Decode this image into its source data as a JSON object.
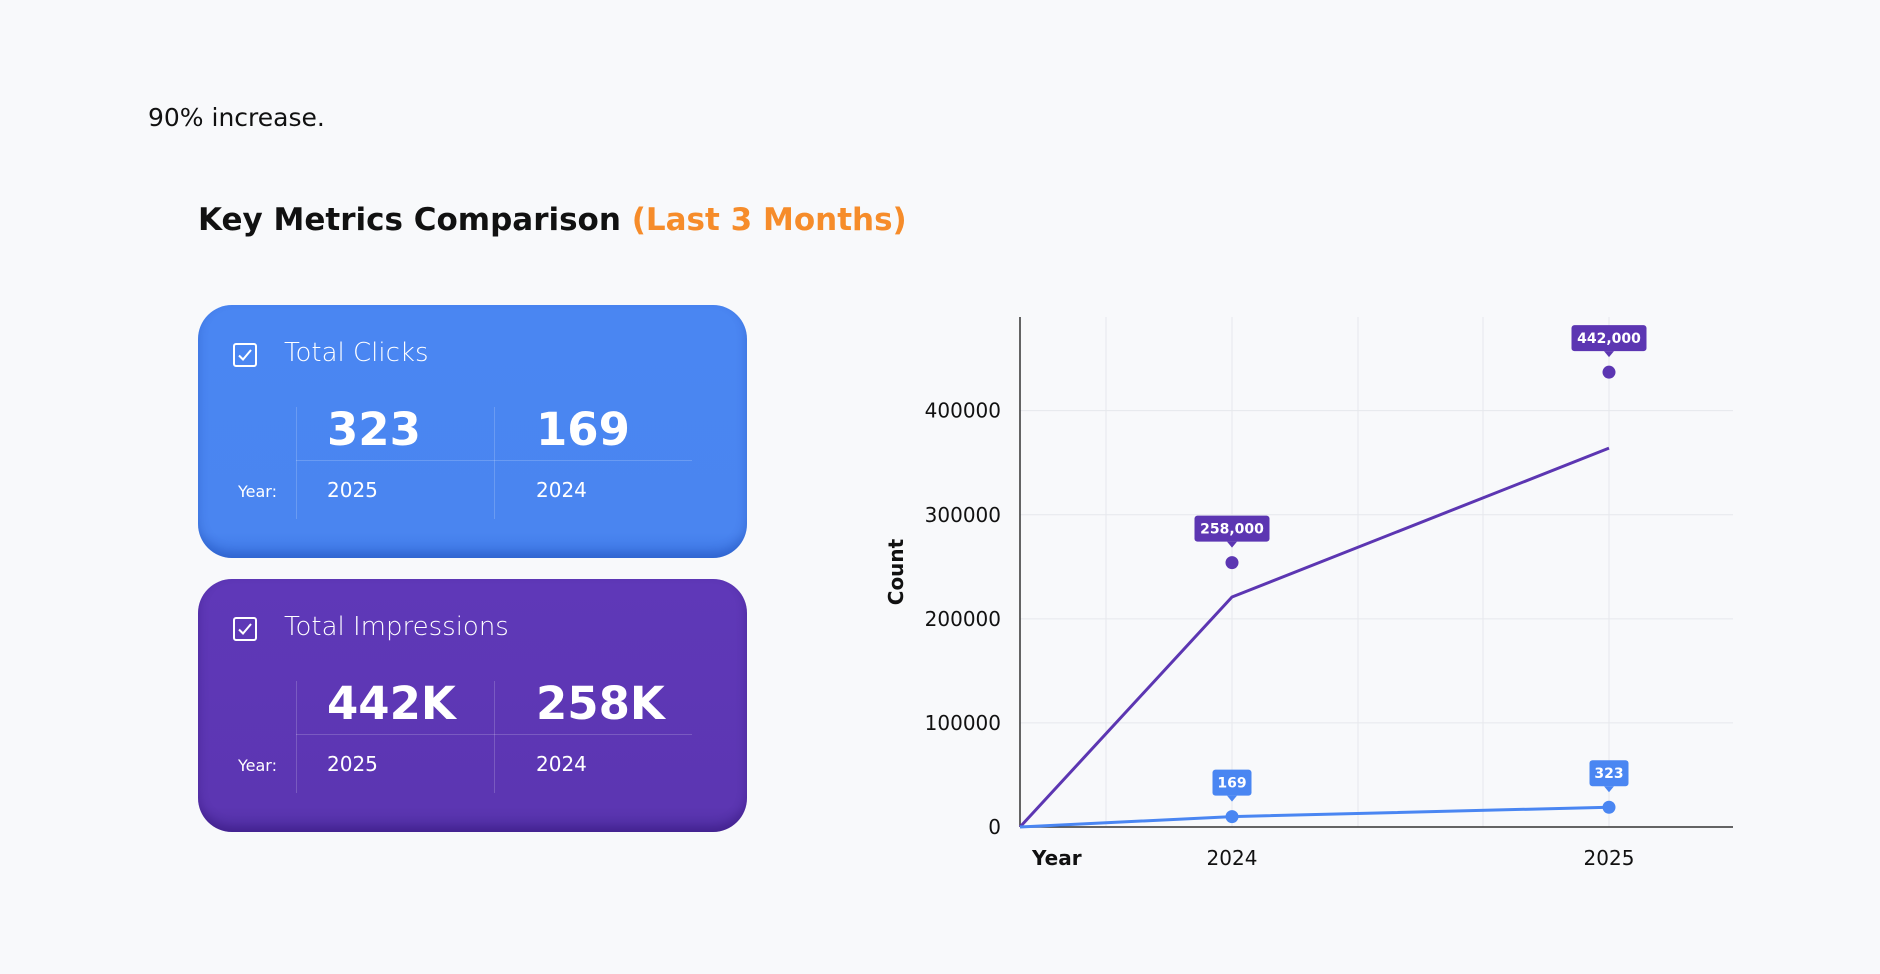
{
  "intro_text": "90% increase.",
  "heading": {
    "main": "Key Metrics Comparison ",
    "accent": "(Last 3 Months)"
  },
  "cards": [
    {
      "title": "Total Clicks",
      "year_label": "Year:",
      "values": [
        "323",
        "169"
      ],
      "years": [
        "2025",
        "2024"
      ],
      "color": "#4a86f2"
    },
    {
      "title": "Total Impressions",
      "year_label": "Year:",
      "values": [
        "442K",
        "258K"
      ],
      "years": [
        "2025",
        "2024"
      ],
      "color": "#5c36b2"
    }
  ],
  "colors": {
    "clicks": "#4a86f2",
    "impressions": "#5c36b2",
    "accent": "#f68c2a"
  },
  "chart_data": {
    "type": "line",
    "xlabel": "Year",
    "ylabel": "Count",
    "categories": [
      "2024",
      "2025"
    ],
    "ylim": [
      0,
      490000
    ],
    "yticks": [
      0,
      100000,
      200000,
      300000,
      400000
    ],
    "grid": true,
    "series": [
      {
        "name": "Total Impressions",
        "color": "#5c36b2",
        "line": [
          [
            0,
            0
          ],
          [
            "2024",
            221000
          ],
          [
            "2025",
            364000
          ]
        ],
        "points": [
          {
            "x": "2024",
            "y": 254000,
            "label": "258,000"
          },
          {
            "x": "2025",
            "y": 437000,
            "label": "442,000"
          }
        ]
      },
      {
        "name": "Total Clicks",
        "color": "#4a86f2",
        "line": [
          [
            0,
            0
          ],
          [
            "2024",
            10000
          ],
          [
            "2025",
            19000
          ]
        ],
        "points": [
          {
            "x": "2024",
            "y": 10000,
            "label": "169"
          },
          {
            "x": "2025",
            "y": 19000,
            "label": "323"
          }
        ]
      }
    ]
  }
}
